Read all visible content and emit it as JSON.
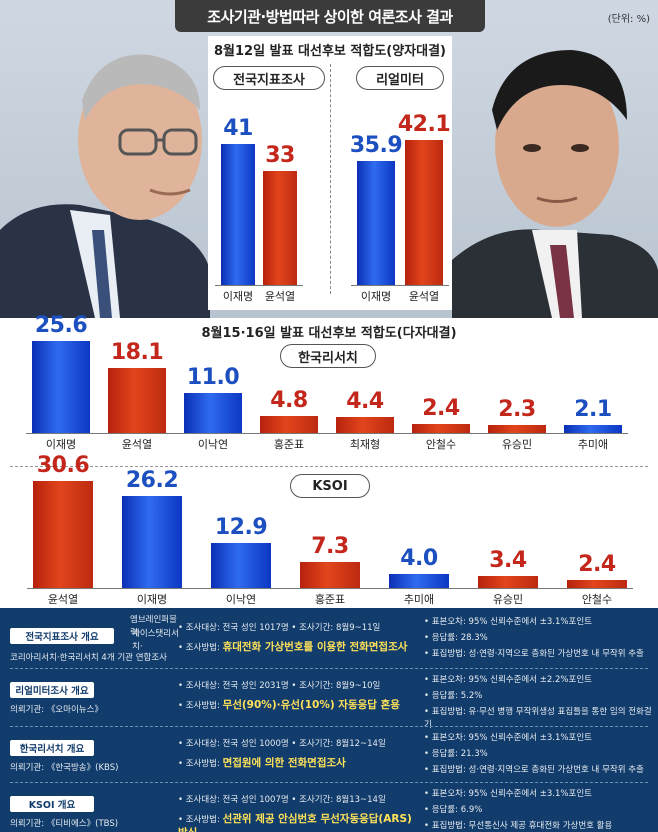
{
  "header": {
    "title": "조사기관·방법따라 상이한 여론조사 결과",
    "unit": "(단위: %)"
  },
  "section1": {
    "title": "8월12일 발표 대선후보 적합도(양자대결)",
    "polls": [
      {
        "name": "전국지표조사"
      },
      {
        "name": "리얼미터"
      }
    ]
  },
  "section2": {
    "title": "8월15·16일 발표 대선후보 적합도(다자대결)",
    "polls": [
      {
        "name": "한국리서치"
      },
      {
        "name": "KSOI"
      }
    ]
  },
  "chart_data": [
    {
      "type": "bar",
      "title": "전국지표조사",
      "categories": [
        "이재명",
        "윤석열"
      ],
      "values": [
        41,
        33
      ],
      "colors": [
        "#1c4fbf",
        "#c3261a"
      ]
    },
    {
      "type": "bar",
      "title": "리얼미터",
      "categories": [
        "이재명",
        "윤석열"
      ],
      "values": [
        35.9,
        42.1
      ],
      "colors": [
        "#1c4fbf",
        "#c3261a"
      ]
    },
    {
      "type": "bar",
      "title": "한국리서치",
      "categories": [
        "이재명",
        "윤석열",
        "이낙연",
        "홍준표",
        "최재형",
        "안철수",
        "유승민",
        "추미애"
      ],
      "values": [
        25.6,
        18.1,
        11.0,
        4.8,
        4.4,
        2.4,
        2.3,
        2.1
      ],
      "colors": [
        "#1c4fbf",
        "#c3261a",
        "#1c4fbf",
        "#c3261a",
        "#c3261a",
        "#c3261a",
        "#c3261a",
        "#1c4fbf"
      ]
    },
    {
      "type": "bar",
      "title": "KSOI",
      "categories": [
        "윤석열",
        "이재명",
        "이낙연",
        "홍준표",
        "추미애",
        "유승민",
        "안철수"
      ],
      "values": [
        30.6,
        26.2,
        12.9,
        7.3,
        4.0,
        3.4,
        2.4
      ],
      "colors": [
        "#c3261a",
        "#1c4fbf",
        "#1c4fbf",
        "#c3261a",
        "#1c4fbf",
        "#c3261a",
        "#c3261a"
      ]
    }
  ],
  "info": [
    {
      "box": "전국지표조사 개요",
      "sub": [
        "엠브레인퍼블릭·",
        "케이스탯리서치·",
        "코리아리서치·한국리서치 4개 기관 연합조사"
      ],
      "mid1": "• 조사대상: 전국 성인 1017명  • 조사기간: 8월9~11일",
      "mid2_label": "• 조사방법: ",
      "mid2_hl": "휴대전화 가상번호를 이용한 전화면접조사",
      "right": [
        "• 표본오차: 95% 신뢰수준에서 ±3.1%포인트",
        "• 응답률: 28.3%",
        "• 표집방법: 성·연령·지역으로 층화된 가상번호 내 무작위 추출"
      ]
    },
    {
      "box": "리얼미터조사 개요",
      "sub": [
        "의뢰기관: 《오마이뉴스》"
      ],
      "mid1": "• 조사대상: 전국 성인 2031명  • 조사기간: 8월9~10일",
      "mid2_label": "• 조사방법: ",
      "mid2_hl": "무선(90%)·유선(10%) 자동응답 혼용",
      "right": [
        "• 표본오차: 95% 신뢰수준에서 ±2.2%포인트",
        "• 응답률: 5.2%",
        "• 표집방법: 유·무선 병행 무작위생성 표집틀을 통한 임의 전화걸기"
      ]
    },
    {
      "box": "한국리서치 개요",
      "sub": [
        "의뢰기관: 《한국방송》(KBS)"
      ],
      "mid1": "• 조사대상: 전국 성인 1000명  • 조사기간: 8월12~14일",
      "mid2_label": "• 조사방법: ",
      "mid2_hl": "면접원에 의한 전화면접조사",
      "right": [
        "• 표본오차: 95% 신뢰수준에서 ±3.1%포인트",
        "• 응답률: 21.3%",
        "• 표집방법: 성·연령·지역으로 층화된 가상번호 내 무작위 추출"
      ]
    },
    {
      "box": "KSOI 개요",
      "sub": [
        "의뢰기관: 《티비에스》(TBS)"
      ],
      "mid1": "• 조사대상: 전국 성인 1007명  • 조사기간: 8월13~14일",
      "mid2_label": "• 조사방법: ",
      "mid2_hl": "선관위 제공 안심번호 무선자동응답(ARS) 방식",
      "right": [
        "• 표본오차: 95% 신뢰수준에서 ±3.1%포인트",
        "• 응답률: 6.9%",
        "• 표집방법: 무선통신사 제공 휴대전화 가상번호 활용"
      ]
    }
  ]
}
